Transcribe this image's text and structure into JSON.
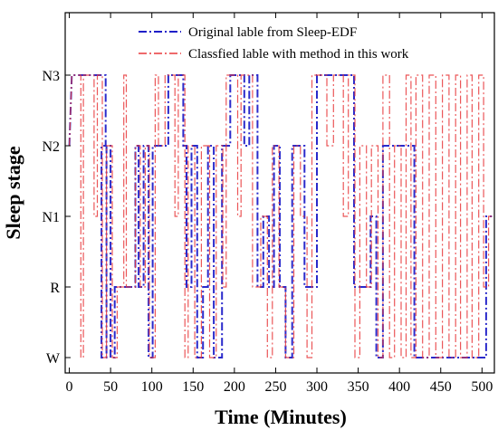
{
  "chart_data": {
    "type": "line",
    "xlabel": "Time (Minutes)",
    "ylabel": "Sleep stage",
    "xlim": [
      -5,
      515
    ],
    "xticks": [
      0,
      50,
      100,
      150,
      200,
      250,
      300,
      350,
      400,
      450,
      500
    ],
    "yticks": [
      "N3",
      "N2",
      "N1",
      "R",
      "W"
    ],
    "ylevels": {
      "N3": 4,
      "N2": 3,
      "N1": 2,
      "R": 1,
      "W": 0
    },
    "legend": {
      "placement": "top-center"
    },
    "grid": false,
    "series": [
      {
        "name": "Original lable from Sleep-EDF",
        "color": "#1f1fc8",
        "style": "dash-dot",
        "step_points": [
          [
            0,
            3
          ],
          [
            3,
            4
          ],
          [
            44,
            4
          ],
          [
            44,
            3
          ],
          [
            39,
            3
          ],
          [
            39,
            0
          ],
          [
            45,
            0
          ],
          [
            45,
            3
          ],
          [
            50,
            3
          ],
          [
            50,
            0
          ],
          [
            55,
            0
          ],
          [
            55,
            1
          ],
          [
            80,
            1
          ],
          [
            80,
            3
          ],
          [
            84,
            3
          ],
          [
            84,
            1
          ],
          [
            90,
            1
          ],
          [
            90,
            3
          ],
          [
            96,
            3
          ],
          [
            96,
            0
          ],
          [
            101,
            0
          ],
          [
            101,
            3
          ],
          [
            120,
            3
          ],
          [
            120,
            4
          ],
          [
            138,
            4
          ],
          [
            138,
            3
          ],
          [
            142,
            3
          ],
          [
            142,
            1
          ],
          [
            148,
            1
          ],
          [
            148,
            3
          ],
          [
            155,
            3
          ],
          [
            155,
            0
          ],
          [
            162,
            0
          ],
          [
            162,
            1
          ],
          [
            168,
            1
          ],
          [
            168,
            3
          ],
          [
            175,
            3
          ],
          [
            175,
            0
          ],
          [
            185,
            0
          ],
          [
            185,
            3
          ],
          [
            195,
            3
          ],
          [
            195,
            4
          ],
          [
            212,
            4
          ],
          [
            212,
            3
          ],
          [
            218,
            3
          ],
          [
            218,
            4
          ],
          [
            228,
            4
          ],
          [
            228,
            1
          ],
          [
            235,
            1
          ],
          [
            235,
            2
          ],
          [
            242,
            2
          ],
          [
            242,
            1
          ],
          [
            248,
            1
          ],
          [
            248,
            3
          ],
          [
            255,
            3
          ],
          [
            255,
            1
          ],
          [
            262,
            1
          ],
          [
            262,
            0
          ],
          [
            270,
            0
          ],
          [
            270,
            3
          ],
          [
            285,
            3
          ],
          [
            285,
            1
          ],
          [
            300,
            1
          ],
          [
            300,
            4
          ],
          [
            345,
            4
          ],
          [
            345,
            1
          ],
          [
            365,
            1
          ],
          [
            365,
            2
          ],
          [
            372,
            2
          ],
          [
            372,
            0
          ],
          [
            380,
            0
          ],
          [
            380,
            3
          ],
          [
            418,
            3
          ],
          [
            418,
            0
          ],
          [
            505,
            0
          ],
          [
            505,
            2
          ],
          [
            512,
            2
          ]
        ]
      },
      {
        "name": "Classfied lable with method in this work",
        "color": "#e8383b",
        "style": "dash-dot",
        "step_points": [
          [
            0,
            3
          ],
          [
            3,
            4
          ],
          [
            14,
            4
          ],
          [
            14,
            0
          ],
          [
            17,
            0
          ],
          [
            17,
            4
          ],
          [
            30,
            4
          ],
          [
            30,
            2
          ],
          [
            34,
            2
          ],
          [
            34,
            4
          ],
          [
            40,
            4
          ],
          [
            40,
            0
          ],
          [
            45,
            0
          ],
          [
            45,
            3
          ],
          [
            52,
            3
          ],
          [
            52,
            0
          ],
          [
            58,
            0
          ],
          [
            58,
            1
          ],
          [
            66,
            1
          ],
          [
            66,
            4
          ],
          [
            69,
            4
          ],
          [
            69,
            1
          ],
          [
            80,
            1
          ],
          [
            80,
            3
          ],
          [
            86,
            3
          ],
          [
            86,
            1
          ],
          [
            92,
            1
          ],
          [
            92,
            3
          ],
          [
            97,
            3
          ],
          [
            97,
            0
          ],
          [
            104,
            0
          ],
          [
            104,
            4
          ],
          [
            108,
            4
          ],
          [
            108,
            3
          ],
          [
            116,
            3
          ],
          [
            116,
            4
          ],
          [
            128,
            4
          ],
          [
            128,
            2
          ],
          [
            132,
            2
          ],
          [
            132,
            4
          ],
          [
            140,
            4
          ],
          [
            140,
            0
          ],
          [
            144,
            0
          ],
          [
            144,
            3
          ],
          [
            152,
            3
          ],
          [
            152,
            0
          ],
          [
            160,
            0
          ],
          [
            160,
            3
          ],
          [
            170,
            3
          ],
          [
            170,
            0
          ],
          [
            178,
            0
          ],
          [
            178,
            3
          ],
          [
            186,
            3
          ],
          [
            186,
            1
          ],
          [
            190,
            1
          ],
          [
            190,
            4
          ],
          [
            204,
            4
          ],
          [
            204,
            2
          ],
          [
            208,
            2
          ],
          [
            208,
            4
          ],
          [
            222,
            4
          ],
          [
            222,
            1
          ],
          [
            232,
            1
          ],
          [
            232,
            2
          ],
          [
            240,
            2
          ],
          [
            240,
            0
          ],
          [
            246,
            0
          ],
          [
            246,
            3
          ],
          [
            254,
            3
          ],
          [
            254,
            1
          ],
          [
            262,
            1
          ],
          [
            262,
            0
          ],
          [
            272,
            0
          ],
          [
            272,
            3
          ],
          [
            280,
            3
          ],
          [
            280,
            2
          ],
          [
            288,
            2
          ],
          [
            288,
            0
          ],
          [
            294,
            0
          ],
          [
            294,
            4
          ],
          [
            312,
            4
          ],
          [
            312,
            3
          ],
          [
            320,
            3
          ],
          [
            320,
            4
          ],
          [
            332,
            4
          ],
          [
            332,
            2
          ],
          [
            338,
            2
          ],
          [
            338,
            4
          ],
          [
            346,
            4
          ],
          [
            346,
            0
          ],
          [
            352,
            0
          ],
          [
            352,
            3
          ],
          [
            360,
            3
          ],
          [
            360,
            1
          ],
          [
            366,
            1
          ],
          [
            366,
            3
          ],
          [
            374,
            3
          ],
          [
            374,
            0
          ],
          [
            380,
            0
          ],
          [
            380,
            4
          ],
          [
            388,
            4
          ],
          [
            388,
            0
          ],
          [
            394,
            0
          ],
          [
            394,
            3
          ],
          [
            402,
            3
          ],
          [
            402,
            0
          ],
          [
            408,
            0
          ],
          [
            408,
            4
          ],
          [
            414,
            4
          ],
          [
            414,
            0
          ],
          [
            420,
            0
          ],
          [
            420,
            4
          ],
          [
            428,
            4
          ],
          [
            428,
            0
          ],
          [
            436,
            0
          ],
          [
            436,
            4
          ],
          [
            444,
            4
          ],
          [
            444,
            0
          ],
          [
            452,
            0
          ],
          [
            452,
            4
          ],
          [
            460,
            4
          ],
          [
            460,
            0
          ],
          [
            468,
            0
          ],
          [
            468,
            4
          ],
          [
            474,
            4
          ],
          [
            474,
            0
          ],
          [
            482,
            0
          ],
          [
            482,
            4
          ],
          [
            488,
            4
          ],
          [
            488,
            0
          ],
          [
            496,
            0
          ],
          [
            496,
            4
          ],
          [
            502,
            4
          ],
          [
            502,
            1
          ],
          [
            508,
            1
          ],
          [
            508,
            2
          ],
          [
            512,
            2
          ]
        ]
      }
    ]
  }
}
